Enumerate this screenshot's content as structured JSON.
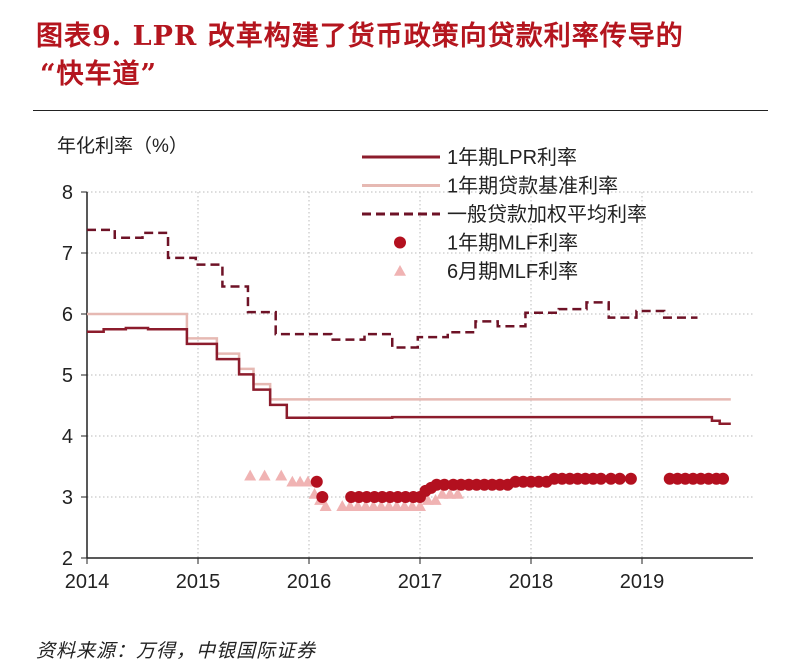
{
  "title": {
    "line1": "图表9. LPR 改革构建了货币政策向贷款利率传导的",
    "line2": "“快车道”"
  },
  "source": "资料来源：万得，中银国际证券",
  "chart_data": {
    "type": "line",
    "ylabel": "年化利率（%）",
    "xlim": [
      2014,
      2020
    ],
    "ylim": [
      2,
      8
    ],
    "xticks": [
      "2014",
      "2015",
      "2016",
      "2017",
      "2018",
      "2019"
    ],
    "yticks": [
      "2",
      "3",
      "4",
      "5",
      "6",
      "7",
      "8"
    ],
    "grid": true,
    "legend_position": "top-right",
    "colors": {
      "lpr": "#8c1c2c",
      "benchmark": "#e6b9b3",
      "weighted": "#6e1226",
      "mlf1y": "#b3101f",
      "mlf6m": "#f0b3b3"
    },
    "series": [
      {
        "name": "1年期LPR利率",
        "style": "step",
        "points": [
          [
            2014,
            5.71
          ],
          [
            2014.15,
            5.75
          ],
          [
            2014.35,
            5.77
          ],
          [
            2014.55,
            5.75
          ],
          [
            2014.9,
            5.51
          ],
          [
            2015.17,
            5.26
          ],
          [
            2015.37,
            5.01
          ],
          [
            2015.5,
            4.76
          ],
          [
            2015.65,
            4.51
          ],
          [
            2015.8,
            4.3
          ],
          [
            2016.75,
            4.31
          ],
          [
            2019.63,
            4.25
          ],
          [
            2019.7,
            4.2
          ],
          [
            2019.8,
            4.2
          ]
        ]
      },
      {
        "name": "1年期贷款基准利率",
        "style": "step",
        "points": [
          [
            2014,
            6.0
          ],
          [
            2014.9,
            5.6
          ],
          [
            2015.17,
            5.35
          ],
          [
            2015.37,
            5.1
          ],
          [
            2015.5,
            4.85
          ],
          [
            2015.65,
            4.6
          ],
          [
            2015.8,
            4.6
          ],
          [
            2019.8,
            4.6
          ]
        ]
      },
      {
        "name": "一般贷款加权平均利率",
        "style": "dashed-step",
        "points": [
          [
            2014,
            7.38
          ],
          [
            2014.25,
            7.25
          ],
          [
            2014.5,
            7.33
          ],
          [
            2014.73,
            6.92
          ],
          [
            2014.98,
            6.81
          ],
          [
            2015.22,
            6.45
          ],
          [
            2015.45,
            6.03
          ],
          [
            2015.7,
            5.67
          ],
          [
            2016.2,
            5.58
          ],
          [
            2016.5,
            5.67
          ],
          [
            2016.75,
            5.45
          ],
          [
            2016.98,
            5.62
          ],
          [
            2017.25,
            5.7
          ],
          [
            2017.5,
            5.88
          ],
          [
            2017.7,
            5.8
          ],
          [
            2017.95,
            6.02
          ],
          [
            2018.25,
            6.08
          ],
          [
            2018.5,
            6.19
          ],
          [
            2018.7,
            5.94
          ],
          [
            2018.95,
            6.05
          ],
          [
            2019.2,
            5.94
          ],
          [
            2019.5,
            5.94
          ]
        ]
      },
      {
        "name": "1年期MLF利率",
        "style": "circle",
        "points": [
          [
            2016.07,
            3.25
          ],
          [
            2016.12,
            3.0
          ],
          [
            2016.38,
            3.0
          ],
          [
            2016.45,
            3.0
          ],
          [
            2016.52,
            3.0
          ],
          [
            2016.59,
            3.0
          ],
          [
            2016.66,
            3.0
          ],
          [
            2016.73,
            3.0
          ],
          [
            2016.8,
            3.0
          ],
          [
            2016.87,
            3.0
          ],
          [
            2016.94,
            3.0
          ],
          [
            2017.0,
            3.0
          ],
          [
            2017.05,
            3.1
          ],
          [
            2017.1,
            3.15
          ],
          [
            2017.15,
            3.2
          ],
          [
            2017.22,
            3.2
          ],
          [
            2017.3,
            3.2
          ],
          [
            2017.37,
            3.2
          ],
          [
            2017.44,
            3.2
          ],
          [
            2017.51,
            3.2
          ],
          [
            2017.58,
            3.2
          ],
          [
            2017.65,
            3.2
          ],
          [
            2017.72,
            3.2
          ],
          [
            2017.79,
            3.2
          ],
          [
            2017.86,
            3.25
          ],
          [
            2017.93,
            3.25
          ],
          [
            2018.0,
            3.25
          ],
          [
            2018.07,
            3.25
          ],
          [
            2018.14,
            3.25
          ],
          [
            2018.21,
            3.3
          ],
          [
            2018.28,
            3.3
          ],
          [
            2018.35,
            3.3
          ],
          [
            2018.42,
            3.3
          ],
          [
            2018.49,
            3.3
          ],
          [
            2018.56,
            3.3
          ],
          [
            2018.63,
            3.3
          ],
          [
            2018.72,
            3.3
          ],
          [
            2018.8,
            3.3
          ],
          [
            2018.9,
            3.3
          ],
          [
            2019.25,
            3.3
          ],
          [
            2019.32,
            3.3
          ],
          [
            2019.39,
            3.3
          ],
          [
            2019.46,
            3.3
          ],
          [
            2019.53,
            3.3
          ],
          [
            2019.6,
            3.3
          ],
          [
            2019.67,
            3.3
          ],
          [
            2019.73,
            3.3
          ]
        ]
      },
      {
        "name": "6月期MLF利率",
        "style": "triangle",
        "points": [
          [
            2015.47,
            3.35
          ],
          [
            2015.6,
            3.35
          ],
          [
            2015.75,
            3.35
          ],
          [
            2015.85,
            3.25
          ],
          [
            2015.92,
            3.25
          ],
          [
            2015.99,
            3.25
          ],
          [
            2016.05,
            3.05
          ],
          [
            2016.1,
            2.95
          ],
          [
            2016.15,
            2.85
          ],
          [
            2016.3,
            2.85
          ],
          [
            2016.37,
            2.85
          ],
          [
            2016.44,
            2.85
          ],
          [
            2016.51,
            2.85
          ],
          [
            2016.58,
            2.85
          ],
          [
            2016.65,
            2.85
          ],
          [
            2016.72,
            2.85
          ],
          [
            2016.79,
            2.85
          ],
          [
            2016.86,
            2.85
          ],
          [
            2016.93,
            2.85
          ],
          [
            2017.0,
            2.85
          ],
          [
            2017.07,
            2.95
          ],
          [
            2017.14,
            2.95
          ],
          [
            2017.2,
            3.05
          ],
          [
            2017.27,
            3.05
          ],
          [
            2017.34,
            3.05
          ]
        ]
      }
    ]
  }
}
